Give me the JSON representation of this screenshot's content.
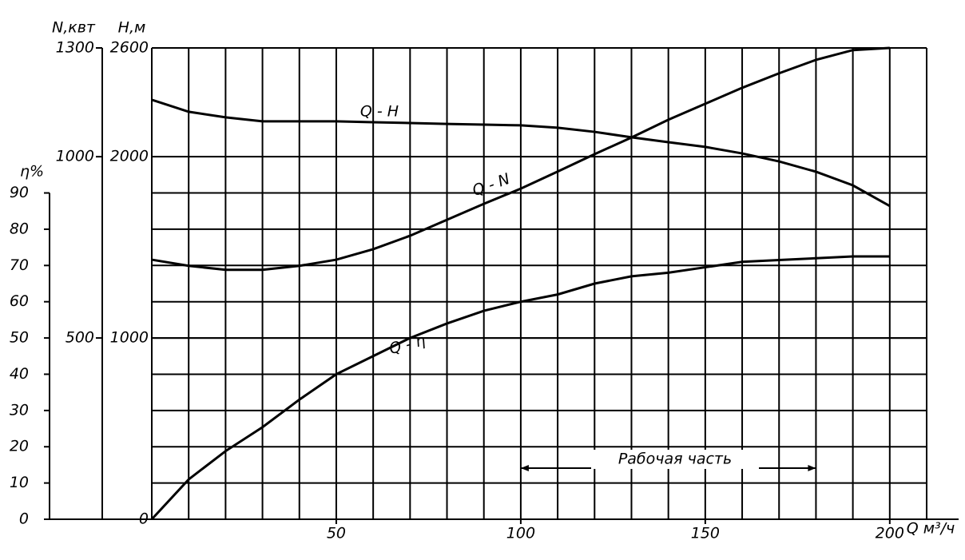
{
  "chart_data": {
    "type": "line",
    "x_label": "Q м³/ч",
    "y_label": "H,м",
    "y2_label": "N,квт",
    "y3_label": "η%",
    "x": [
      0,
      10,
      20,
      30,
      40,
      50,
      60,
      70,
      80,
      90,
      100,
      110,
      120,
      130,
      140,
      150,
      160,
      170,
      180,
      190,
      200
    ],
    "xlim": [
      0,
      210
    ],
    "xticks": [
      50,
      100,
      150,
      200
    ],
    "xgrid": [
      0,
      10,
      20,
      30,
      40,
      50,
      60,
      70,
      80,
      90,
      100,
      110,
      120,
      130,
      140,
      150,
      160,
      170,
      180,
      190,
      200,
      210
    ],
    "ylim": [
      0,
      2600
    ],
    "yticks": [
      0,
      1000,
      2000,
      2600
    ],
    "y2lim": [
      0,
      1300
    ],
    "y2ticks": [
      0,
      500,
      1000,
      1300
    ],
    "y3lim": [
      0,
      130
    ],
    "y3ticks": [
      0,
      10,
      20,
      30,
      40,
      50,
      60,
      70,
      80,
      90
    ],
    "series": [
      {
        "name": "Q - H",
        "color": "#000000",
        "axis": "y",
        "values": [
          2314,
          2248,
          2217,
          2195,
          2195,
          2195,
          2190,
          2186,
          2181,
          2177,
          2173,
          2160,
          2137,
          2107,
          2080,
          2054,
          2018,
          1974,
          1917,
          1842,
          1728
        ]
      },
      {
        "name": "Q - N",
        "color": "#000000",
        "axis": "y2",
        "values": [
          716,
          699,
          688,
          688,
          699,
          716,
          745,
          782,
          826,
          870,
          912,
          959,
          1007,
          1053,
          1102,
          1146,
          1190,
          1230,
          1267,
          1294,
          1300
        ]
      },
      {
        "name": "Q - η",
        "color": "#000000",
        "axis": "y3",
        "values": [
          0,
          11,
          18.8,
          25.4,
          33,
          40,
          45,
          50,
          54,
          57.5,
          60,
          62,
          65,
          67,
          68,
          69.5,
          71,
          71.5,
          72,
          72.5,
          72.5
        ]
      }
    ],
    "working_range": {
      "label": "Рабочая часть",
      "x": [
        100,
        180
      ]
    }
  }
}
